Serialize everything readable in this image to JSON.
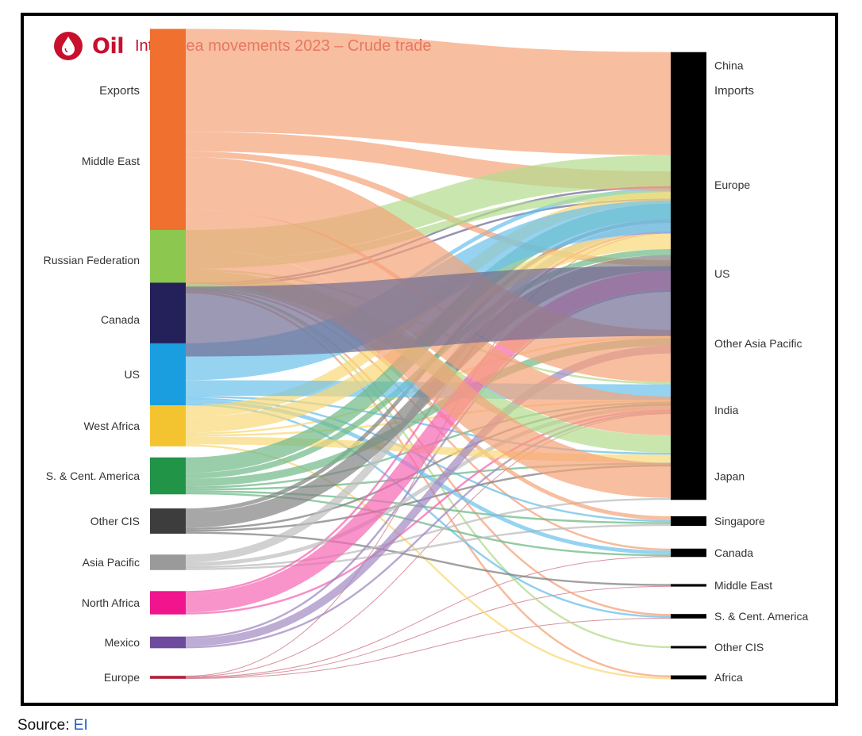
{
  "header": {
    "logo_word": "Oil",
    "subtitle": "Inter-area movements 2023 – Crude trade",
    "icon": "oil-drop-icon",
    "brand_color": "#c8102e"
  },
  "footer": {
    "source_label": "Source:",
    "source_link": "EI"
  },
  "chart_data": {
    "type": "sankey",
    "left_header": "Exports",
    "right_header": "Imports",
    "sources": [
      {
        "name": "Middle East",
        "color": "#f07030"
      },
      {
        "name": "Russian Federation",
        "color": "#8cc850"
      },
      {
        "name": "Canada",
        "color": "#23205a"
      },
      {
        "name": "US",
        "color": "#1a9ee0"
      },
      {
        "name": "West Africa",
        "color": "#f4c430"
      },
      {
        "name": "S. & Cent. America",
        "color": "#219448"
      },
      {
        "name": "Other CIS",
        "color": "#3d3d3d"
      },
      {
        "name": "Asia Pacific",
        "color": "#9a9a9a"
      },
      {
        "name": "North Africa",
        "color": "#f0158c"
      },
      {
        "name": "Mexico",
        "color": "#6e4a9e"
      },
      {
        "name": "Europe",
        "color": "#b0203c"
      }
    ],
    "targets": [
      {
        "name": "China"
      },
      {
        "name": "Europe"
      },
      {
        "name": "US"
      },
      {
        "name": "Other Asia Pacific"
      },
      {
        "name": "India"
      },
      {
        "name": "Japan"
      },
      {
        "name": "Singapore"
      },
      {
        "name": "Canada"
      },
      {
        "name": "Middle East"
      },
      {
        "name": "S. & Cent. America"
      },
      {
        "name": "Other CIS"
      },
      {
        "name": "Africa"
      }
    ],
    "flows": [
      {
        "from": "Middle East",
        "to": "China",
        "value": 5.3
      },
      {
        "from": "Middle East",
        "to": "Europe",
        "value": 1.0
      },
      {
        "from": "Middle East",
        "to": "US",
        "value": 0.3
      },
      {
        "from": "Middle East",
        "to": "Other Asia Pacific",
        "value": 2.7
      },
      {
        "from": "Middle East",
        "to": "India",
        "value": 2.0
      },
      {
        "from": "Middle East",
        "to": "Japan",
        "value": 1.8
      },
      {
        "from": "Middle East",
        "to": "Singapore",
        "value": 0.2
      },
      {
        "from": "Middle East",
        "to": "Canada",
        "value": 0.1
      },
      {
        "from": "Middle East",
        "to": "S. & Cent. America",
        "value": 0.1
      },
      {
        "from": "Middle East",
        "to": "Africa",
        "value": 0.1
      },
      {
        "from": "Russian Federation",
        "to": "China",
        "value": 1.6
      },
      {
        "from": "Russian Federation",
        "to": "Europe",
        "value": 0.4
      },
      {
        "from": "Russian Federation",
        "to": "India",
        "value": 0.9
      },
      {
        "from": "Russian Federation",
        "to": "Other Asia Pacific",
        "value": 0.1
      },
      {
        "from": "Russian Federation",
        "to": "Other CIS",
        "value": 0.1
      },
      {
        "from": "Canada",
        "to": "US",
        "value": 3.6
      },
      {
        "from": "Canada",
        "to": "China",
        "value": 0.1
      },
      {
        "from": "Canada",
        "to": "Europe",
        "value": 0.1
      },
      {
        "from": "US",
        "to": "Europe",
        "value": 1.7
      },
      {
        "from": "US",
        "to": "Other Asia Pacific",
        "value": 0.8
      },
      {
        "from": "US",
        "to": "China",
        "value": 0.2
      },
      {
        "from": "US",
        "to": "Canada",
        "value": 0.2
      },
      {
        "from": "US",
        "to": "India",
        "value": 0.1
      },
      {
        "from": "US",
        "to": "Singapore",
        "value": 0.1
      },
      {
        "from": "US",
        "to": "S. & Cent. America",
        "value": 0.1
      },
      {
        "from": "West Africa",
        "to": "Europe",
        "value": 0.8
      },
      {
        "from": "West Africa",
        "to": "China",
        "value": 0.6
      },
      {
        "from": "West Africa",
        "to": "India",
        "value": 0.4
      },
      {
        "from": "West Africa",
        "to": "US",
        "value": 0.1
      },
      {
        "from": "West Africa",
        "to": "Other Asia Pacific",
        "value": 0.1
      },
      {
        "from": "West Africa",
        "to": "Africa",
        "value": 0.1
      },
      {
        "from": "S. & Cent. America",
        "to": "China",
        "value": 0.8
      },
      {
        "from": "S. & Cent. America",
        "to": "US",
        "value": 0.4
      },
      {
        "from": "S. & Cent. America",
        "to": "Europe",
        "value": 0.3
      },
      {
        "from": "S. & Cent. America",
        "to": "India",
        "value": 0.1
      },
      {
        "from": "S. & Cent. America",
        "to": "Other Asia Pacific",
        "value": 0.1
      },
      {
        "from": "S. & Cent. America",
        "to": "Canada",
        "value": 0.1
      },
      {
        "from": "S. & Cent. America",
        "to": "Singapore",
        "value": 0.1
      },
      {
        "from": "Other CIS",
        "to": "Europe",
        "value": 0.8
      },
      {
        "from": "Other CIS",
        "to": "China",
        "value": 0.2
      },
      {
        "from": "Other CIS",
        "to": "Other Asia Pacific",
        "value": 0.1
      },
      {
        "from": "Other CIS",
        "to": "India",
        "value": 0.1
      },
      {
        "from": "Other CIS",
        "to": "Middle East",
        "value": 0.1
      },
      {
        "from": "Asia Pacific",
        "to": "China",
        "value": 0.4
      },
      {
        "from": "Asia Pacific",
        "to": "Other Asia Pacific",
        "value": 0.2
      },
      {
        "from": "Asia Pacific",
        "to": "Singapore",
        "value": 0.1
      },
      {
        "from": "Asia Pacific",
        "to": "Japan",
        "value": 0.1
      },
      {
        "from": "North Africa",
        "to": "Europe",
        "value": 1.0
      },
      {
        "from": "North Africa",
        "to": "China",
        "value": 0.1
      },
      {
        "from": "North Africa",
        "to": "Other Asia Pacific",
        "value": 0.1
      },
      {
        "from": "Mexico",
        "to": "US",
        "value": 0.4
      },
      {
        "from": "Mexico",
        "to": "Europe",
        "value": 0.1
      },
      {
        "from": "Mexico",
        "to": "Other Asia Pacific",
        "value": 0.1
      },
      {
        "from": "Europe",
        "to": "China",
        "value": 0.03
      },
      {
        "from": "Europe",
        "to": "Other Asia Pacific",
        "value": 0.03
      },
      {
        "from": "Europe",
        "to": "Canada",
        "value": 0.03
      },
      {
        "from": "Europe",
        "to": "Middle East",
        "value": 0.03
      },
      {
        "from": "Europe",
        "to": "S. & Cent. America",
        "value": 0.03
      }
    ]
  }
}
